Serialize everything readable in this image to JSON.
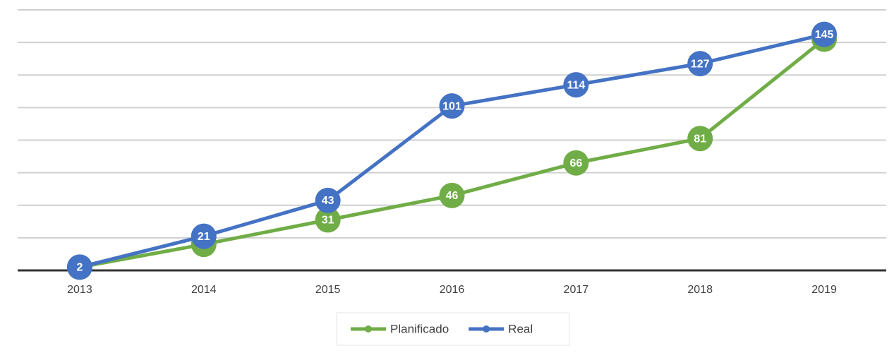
{
  "chart_data": {
    "type": "line",
    "categories": [
      "2013",
      "2014",
      "2015",
      "2016",
      "2017",
      "2018",
      "2019"
    ],
    "series": [
      {
        "name": "Planificado",
        "color": "#70ad47",
        "values": [
          2,
          16,
          31,
          46,
          66,
          81,
          142
        ]
      },
      {
        "name": "Real",
        "color": "#4472c4",
        "values": [
          2,
          21,
          43,
          101,
          114,
          127,
          145
        ]
      }
    ],
    "ylim": [
      0,
      160
    ],
    "yticks": [
      0,
      20,
      40,
      60,
      80,
      100,
      120,
      140,
      160
    ],
    "grid": true,
    "legend": "bottom"
  }
}
